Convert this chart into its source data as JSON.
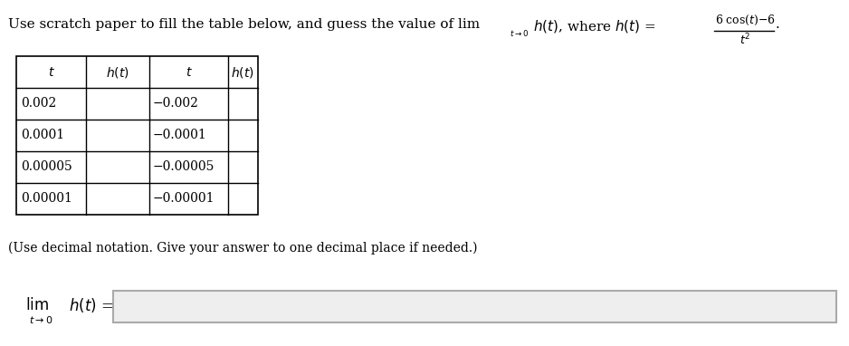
{
  "title_text": "Use scratch paper to fill the table below, and guess the value of lim",
  "fraction_num": "6 cos(t)–6",
  "fraction_den": "t²",
  "col_headers": [
    "$t$",
    "$h(t)$",
    "$t$",
    "$h(t)$"
  ],
  "rows": [
    [
      "0.002",
      "",
      "−0.002",
      ""
    ],
    [
      "0.0001",
      "",
      "−0.0001",
      ""
    ],
    [
      "0.00005",
      "",
      "−0.00005",
      ""
    ],
    [
      "0.00001",
      "",
      "−0.00001",
      ""
    ]
  ],
  "note_text": "(Use decimal notation. Give your answer to one decimal place if needed.)",
  "bg_color": "#ffffff"
}
